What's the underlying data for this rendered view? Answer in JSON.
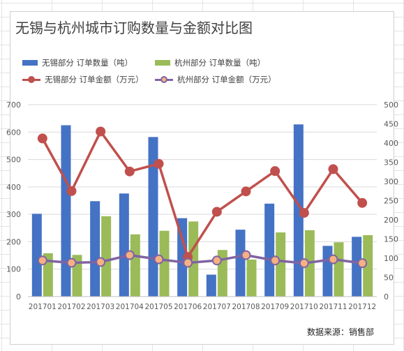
{
  "chart_data": {
    "type": "bar",
    "title": "无锡与杭州城市订购数量与金额对比图",
    "categories": [
      "201701",
      "201702",
      "201703",
      "201704",
      "201705",
      "201706",
      "201707",
      "201708",
      "201709",
      "201710",
      "201711",
      "201712"
    ],
    "bar_series": [
      {
        "name": "无锡部分 订单数量（吨）",
        "color": "#4472c4",
        "axis": "left",
        "values": [
          302,
          625,
          348,
          376,
          582,
          286,
          80,
          244,
          339,
          628,
          185,
          218
        ]
      },
      {
        "name": "杭州部分 订单数量（吨）",
        "color": "#9bbb59",
        "axis": "left",
        "values": [
          158,
          152,
          293,
          227,
          240,
          274,
          170,
          135,
          234,
          242,
          198,
          224
        ]
      }
    ],
    "line_series": [
      {
        "name": "无锡部分 订单金额（万元）",
        "color": "#c0504d",
        "marker_fill": "#c0504d",
        "axis": "right",
        "values": [
          412,
          275,
          430,
          326,
          346,
          103,
          221,
          274,
          327,
          218,
          332,
          244
        ]
      },
      {
        "name": "杭州部分 订单金额（万元）",
        "color": "#8064a2",
        "marker_fill": "#f4b183",
        "axis": "right",
        "values": [
          94,
          88,
          90,
          108,
          97,
          88,
          94,
          108,
          94,
          87,
          97,
          87
        ]
      }
    ],
    "y_left": {
      "min": 0,
      "max": 700,
      "ticks": [
        0,
        100,
        200,
        300,
        400,
        500,
        600,
        700
      ]
    },
    "y_right": {
      "min": 0,
      "max": 500,
      "ticks": [
        0,
        50,
        100,
        150,
        200,
        250,
        300,
        350,
        400,
        450,
        500
      ]
    },
    "grid": true,
    "legend_position": "top-left"
  },
  "source_note": "数据来源：销售部"
}
